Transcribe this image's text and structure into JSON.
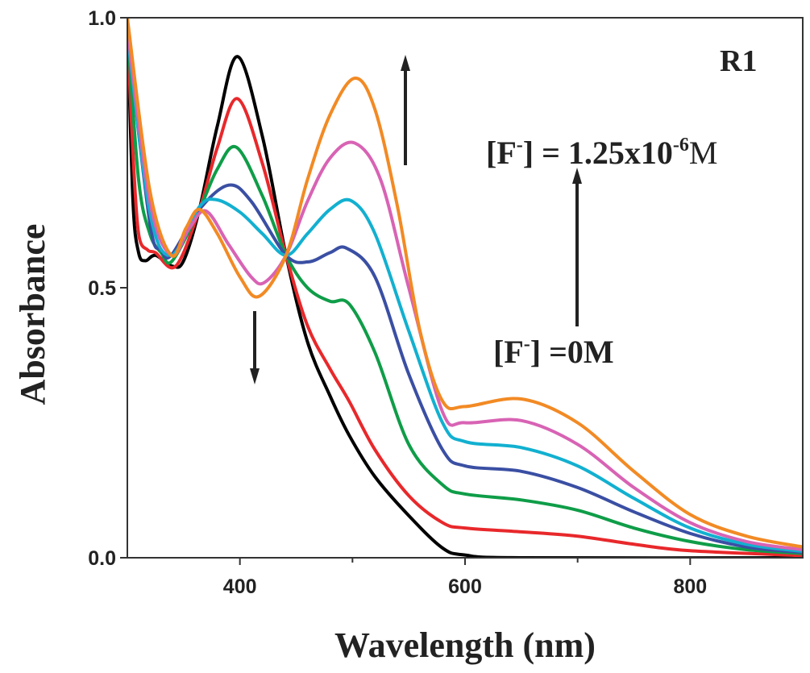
{
  "chart_data": {
    "type": "line",
    "title": "",
    "xlabel": "Wavelength (nm)",
    "ylabel": "Absorbance",
    "xlim": [
      300,
      900
    ],
    "ylim": [
      0,
      1.0
    ],
    "xticks": [
      400,
      600,
      800
    ],
    "xticks_minor": [
      500,
      700
    ],
    "yticks": [
      "0.0",
      "0.5",
      "1.0"
    ],
    "ytick_values": [
      0,
      0.5,
      1.0
    ],
    "grid": false,
    "annotations": {
      "label": "R1",
      "top_concentration_prefix": "[F",
      "top_concentration_sup": "-",
      "top_concentration_mid": "] = 1.25x10",
      "top_concentration_exp": "-6",
      "top_concentration_unit": "M",
      "bottom_concentration_prefix": "[F",
      "bottom_concentration_sup": "-",
      "bottom_concentration_rest": "] =0M"
    },
    "series": [
      {
        "color": "#000000",
        "points": [
          [
            300,
            1.0
          ],
          [
            305,
            0.66
          ],
          [
            310,
            0.565
          ],
          [
            316,
            0.55
          ],
          [
            325,
            0.56
          ],
          [
            340,
            0.54
          ],
          [
            350,
            0.55
          ],
          [
            364,
            0.645
          ],
          [
            380,
            0.8
          ],
          [
            398,
            0.928
          ],
          [
            420,
            0.78
          ],
          [
            441,
            0.56
          ],
          [
            460,
            0.4
          ],
          [
            480,
            0.3
          ],
          [
            497,
            0.227
          ],
          [
            520,
            0.15
          ],
          [
            550,
            0.078
          ],
          [
            580,
            0.018
          ],
          [
            600,
            0.005
          ],
          [
            650,
            0.0
          ],
          [
            900,
            0.0
          ]
        ]
      },
      {
        "color": "#e8282b",
        "points": [
          [
            300,
            0.98
          ],
          [
            305,
            0.75
          ],
          [
            310,
            0.6
          ],
          [
            318,
            0.57
          ],
          [
            325,
            0.565
          ],
          [
            343,
            0.54
          ],
          [
            364,
            0.645
          ],
          [
            380,
            0.76
          ],
          [
            398,
            0.85
          ],
          [
            420,
            0.73
          ],
          [
            441,
            0.56
          ],
          [
            460,
            0.43
          ],
          [
            480,
            0.35
          ],
          [
            497,
            0.29
          ],
          [
            520,
            0.2
          ],
          [
            550,
            0.115
          ],
          [
            580,
            0.065
          ],
          [
            600,
            0.055
          ],
          [
            650,
            0.048
          ],
          [
            700,
            0.04
          ],
          [
            750,
            0.025
          ],
          [
            800,
            0.013
          ],
          [
            900,
            0.004
          ]
        ]
      },
      {
        "color": "#0f9d48",
        "points": [
          [
            300,
            0.98
          ],
          [
            310,
            0.7
          ],
          [
            320,
            0.6
          ],
          [
            330,
            0.565
          ],
          [
            340,
            0.55
          ],
          [
            364,
            0.645
          ],
          [
            380,
            0.72
          ],
          [
            397,
            0.76
          ],
          [
            420,
            0.67
          ],
          [
            441,
            0.56
          ],
          [
            460,
            0.5
          ],
          [
            480,
            0.475
          ],
          [
            497,
            0.47
          ],
          [
            520,
            0.38
          ],
          [
            550,
            0.21
          ],
          [
            580,
            0.135
          ],
          [
            600,
            0.118
          ],
          [
            650,
            0.107
          ],
          [
            700,
            0.088
          ],
          [
            750,
            0.055
          ],
          [
            800,
            0.03
          ],
          [
            850,
            0.015
          ],
          [
            900,
            0.008
          ]
        ]
      },
      {
        "color": "#3a4fa3",
        "points": [
          [
            300,
            0.97
          ],
          [
            320,
            0.62
          ],
          [
            330,
            0.57
          ],
          [
            339,
            0.56
          ],
          [
            364,
            0.645
          ],
          [
            390,
            0.69
          ],
          [
            410,
            0.66
          ],
          [
            441,
            0.56
          ],
          [
            461,
            0.548
          ],
          [
            480,
            0.565
          ],
          [
            495,
            0.573
          ],
          [
            520,
            0.52
          ],
          [
            550,
            0.34
          ],
          [
            580,
            0.2
          ],
          [
            600,
            0.17
          ],
          [
            650,
            0.16
          ],
          [
            700,
            0.13
          ],
          [
            750,
            0.085
          ],
          [
            800,
            0.045
          ],
          [
            850,
            0.02
          ],
          [
            900,
            0.01
          ]
        ]
      },
      {
        "color": "#12b0d0",
        "points": [
          [
            300,
            0.97
          ],
          [
            320,
            0.64
          ],
          [
            339,
            0.56
          ],
          [
            364,
            0.65
          ],
          [
            379,
            0.663
          ],
          [
            400,
            0.64
          ],
          [
            420,
            0.6
          ],
          [
            441,
            0.56
          ],
          [
            460,
            0.6
          ],
          [
            480,
            0.645
          ],
          [
            499,
            0.661
          ],
          [
            520,
            0.6
          ],
          [
            550,
            0.42
          ],
          [
            580,
            0.25
          ],
          [
            600,
            0.215
          ],
          [
            650,
            0.204
          ],
          [
            700,
            0.17
          ],
          [
            750,
            0.11
          ],
          [
            800,
            0.055
          ],
          [
            850,
            0.025
          ],
          [
            900,
            0.012
          ]
        ]
      },
      {
        "color": "#d863b4",
        "points": [
          [
            300,
            0.98
          ],
          [
            320,
            0.66
          ],
          [
            339,
            0.56
          ],
          [
            355,
            0.61
          ],
          [
            370,
            0.642
          ],
          [
            390,
            0.58
          ],
          [
            410,
            0.52
          ],
          [
            422,
            0.51
          ],
          [
            441,
            0.56
          ],
          [
            460,
            0.66
          ],
          [
            480,
            0.74
          ],
          [
            502,
            0.768
          ],
          [
            525,
            0.7
          ],
          [
            550,
            0.5
          ],
          [
            580,
            0.27
          ],
          [
            600,
            0.25
          ],
          [
            650,
            0.254
          ],
          [
            700,
            0.21
          ],
          [
            750,
            0.13
          ],
          [
            800,
            0.065
          ],
          [
            850,
            0.03
          ],
          [
            900,
            0.015
          ]
        ]
      },
      {
        "color": "#f28a24",
        "points": [
          [
            300,
            1.0
          ],
          [
            320,
            0.68
          ],
          [
            339,
            0.56
          ],
          [
            352,
            0.61
          ],
          [
            364,
            0.645
          ],
          [
            380,
            0.6
          ],
          [
            400,
            0.52
          ],
          [
            417,
            0.484
          ],
          [
            441,
            0.56
          ],
          [
            460,
            0.7
          ],
          [
            480,
            0.82
          ],
          [
            502,
            0.888
          ],
          [
            520,
            0.83
          ],
          [
            540,
            0.65
          ],
          [
            560,
            0.42
          ],
          [
            580,
            0.29
          ],
          [
            600,
            0.28
          ],
          [
            650,
            0.294
          ],
          [
            700,
            0.25
          ],
          [
            750,
            0.16
          ],
          [
            800,
            0.08
          ],
          [
            850,
            0.04
          ],
          [
            900,
            0.02
          ]
        ]
      }
    ]
  }
}
